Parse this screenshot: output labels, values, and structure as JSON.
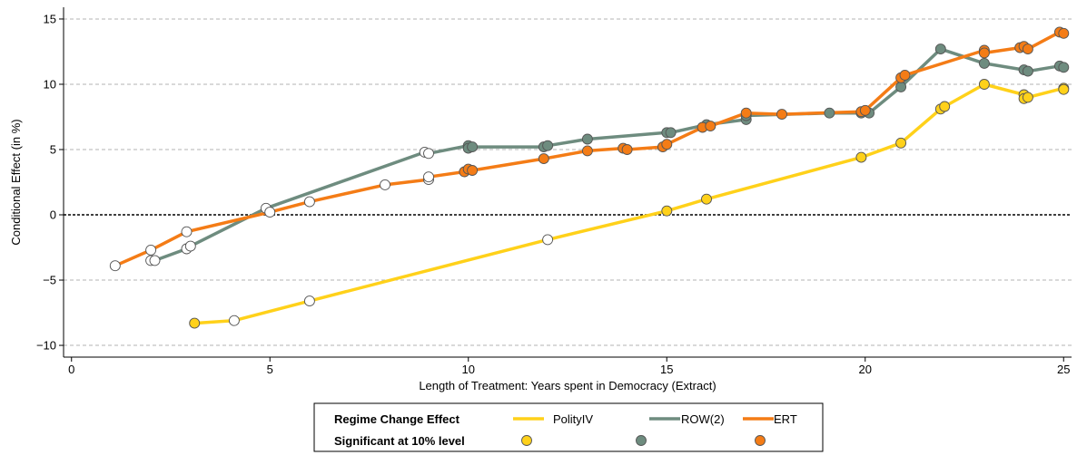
{
  "chart_data": {
    "type": "line",
    "xlabel": "Length of Treatment: Years spent in Democracy (Extract)",
    "ylabel": "Conditional Effect (in %)",
    "xlim": [
      -0.2,
      25.2
    ],
    "ylim": [
      -10.9,
      15.9
    ],
    "x_ticks": [
      0,
      5,
      10,
      15,
      20,
      25
    ],
    "y_ticks": [
      -10,
      -5,
      0,
      5,
      10,
      15
    ],
    "y_tick_labels": [
      "−10",
      "−5",
      "0",
      "5",
      "10",
      "15"
    ],
    "grid": "horizontal dashed",
    "zero_line": "dotted",
    "legend": {
      "position": "bottom",
      "row1_title": "Regime Change Effect",
      "row2_title": "Significant at 10% level"
    },
    "series": [
      {
        "name": "PolityIV",
        "color": "#ffd11a",
        "points": [
          {
            "x": 3.1,
            "y": -8.3,
            "sig": true
          },
          {
            "x": 4.1,
            "y": -8.1,
            "sig": false
          },
          {
            "x": 6.0,
            "y": -6.6,
            "sig": false
          },
          {
            "x": 12.0,
            "y": -1.9,
            "sig": false
          },
          {
            "x": 15.0,
            "y": 0.3,
            "sig": true
          },
          {
            "x": 16.0,
            "y": 1.2,
            "sig": true
          },
          {
            "x": 19.9,
            "y": 4.4,
            "sig": true
          },
          {
            "x": 20.9,
            "y": 5.5,
            "sig": true
          },
          {
            "x": 21.9,
            "y": 8.1,
            "sig": true
          },
          {
            "x": 22.0,
            "y": 8.3,
            "sig": true
          },
          {
            "x": 23.0,
            "y": 10.0,
            "sig": true
          },
          {
            "x": 24.0,
            "y": 9.2,
            "sig": true
          },
          {
            "x": 24.0,
            "y": 8.9,
            "sig": true
          },
          {
            "x": 24.1,
            "y": 9.0,
            "sig": true
          },
          {
            "x": 25.0,
            "y": 9.7,
            "sig": true
          },
          {
            "x": 25.0,
            "y": 9.6,
            "sig": true
          }
        ]
      },
      {
        "name": "ROW(2)",
        "color": "#6e8c7f",
        "points": [
          {
            "x": 2.0,
            "y": -3.5,
            "sig": false
          },
          {
            "x": 2.1,
            "y": -3.5,
            "sig": false
          },
          {
            "x": 2.9,
            "y": -2.6,
            "sig": false
          },
          {
            "x": 3.0,
            "y": -2.4,
            "sig": false
          },
          {
            "x": 4.9,
            "y": 0.5,
            "sig": false
          },
          {
            "x": 8.9,
            "y": 4.8,
            "sig": false
          },
          {
            "x": 9.0,
            "y": 4.7,
            "sig": false
          },
          {
            "x": 10.0,
            "y": 5.3,
            "sig": true
          },
          {
            "x": 10.0,
            "y": 5.1,
            "sig": true
          },
          {
            "x": 10.1,
            "y": 5.2,
            "sig": true
          },
          {
            "x": 11.9,
            "y": 5.2,
            "sig": true
          },
          {
            "x": 12.0,
            "y": 5.3,
            "sig": true
          },
          {
            "x": 13.0,
            "y": 5.8,
            "sig": true
          },
          {
            "x": 15.0,
            "y": 6.3,
            "sig": true
          },
          {
            "x": 15.1,
            "y": 6.3,
            "sig": true
          },
          {
            "x": 16.0,
            "y": 6.9,
            "sig": true
          },
          {
            "x": 17.0,
            "y": 7.3,
            "sig": true
          },
          {
            "x": 17.0,
            "y": 7.6,
            "sig": true
          },
          {
            "x": 19.1,
            "y": 7.8,
            "sig": true
          },
          {
            "x": 19.9,
            "y": 7.8,
            "sig": true
          },
          {
            "x": 20.1,
            "y": 7.8,
            "sig": true
          },
          {
            "x": 20.9,
            "y": 9.8,
            "sig": true
          },
          {
            "x": 21.9,
            "y": 12.7,
            "sig": true
          },
          {
            "x": 23.0,
            "y": 11.6,
            "sig": true
          },
          {
            "x": 24.0,
            "y": 11.1,
            "sig": true
          },
          {
            "x": 24.1,
            "y": 11.0,
            "sig": true
          },
          {
            "x": 24.9,
            "y": 11.4,
            "sig": true
          },
          {
            "x": 25.0,
            "y": 11.3,
            "sig": true
          }
        ]
      },
      {
        "name": "ERT",
        "color": "#f47c16",
        "points": [
          {
            "x": 1.1,
            "y": -3.9,
            "sig": false
          },
          {
            "x": 2.0,
            "y": -2.7,
            "sig": false
          },
          {
            "x": 2.9,
            "y": -1.3,
            "sig": false
          },
          {
            "x": 5.0,
            "y": 0.2,
            "sig": false
          },
          {
            "x": 6.0,
            "y": 1.0,
            "sig": false
          },
          {
            "x": 7.9,
            "y": 2.3,
            "sig": false
          },
          {
            "x": 9.0,
            "y": 2.7,
            "sig": false
          },
          {
            "x": 9.0,
            "y": 2.9,
            "sig": false
          },
          {
            "x": 9.9,
            "y": 3.3,
            "sig": true
          },
          {
            "x": 10.0,
            "y": 3.5,
            "sig": true
          },
          {
            "x": 10.1,
            "y": 3.4,
            "sig": true
          },
          {
            "x": 11.9,
            "y": 4.3,
            "sig": true
          },
          {
            "x": 13.0,
            "y": 4.9,
            "sig": true
          },
          {
            "x": 13.9,
            "y": 5.1,
            "sig": true
          },
          {
            "x": 14.0,
            "y": 5.0,
            "sig": true
          },
          {
            "x": 14.9,
            "y": 5.2,
            "sig": true
          },
          {
            "x": 15.0,
            "y": 5.4,
            "sig": true
          },
          {
            "x": 15.9,
            "y": 6.7,
            "sig": true
          },
          {
            "x": 16.1,
            "y": 6.8,
            "sig": true
          },
          {
            "x": 17.0,
            "y": 7.8,
            "sig": true
          },
          {
            "x": 17.9,
            "y": 7.7,
            "sig": true
          },
          {
            "x": 19.9,
            "y": 7.9,
            "sig": true
          },
          {
            "x": 20.0,
            "y": 8.0,
            "sig": true
          },
          {
            "x": 20.9,
            "y": 10.5,
            "sig": true
          },
          {
            "x": 21.0,
            "y": 10.7,
            "sig": true
          },
          {
            "x": 23.0,
            "y": 12.6,
            "sig": true
          },
          {
            "x": 23.0,
            "y": 12.4,
            "sig": true
          },
          {
            "x": 23.9,
            "y": 12.8,
            "sig": true
          },
          {
            "x": 24.0,
            "y": 12.9,
            "sig": true
          },
          {
            "x": 24.1,
            "y": 12.7,
            "sig": true
          },
          {
            "x": 24.9,
            "y": 14.0,
            "sig": true
          },
          {
            "x": 25.0,
            "y": 13.9,
            "sig": true
          }
        ]
      }
    ]
  }
}
